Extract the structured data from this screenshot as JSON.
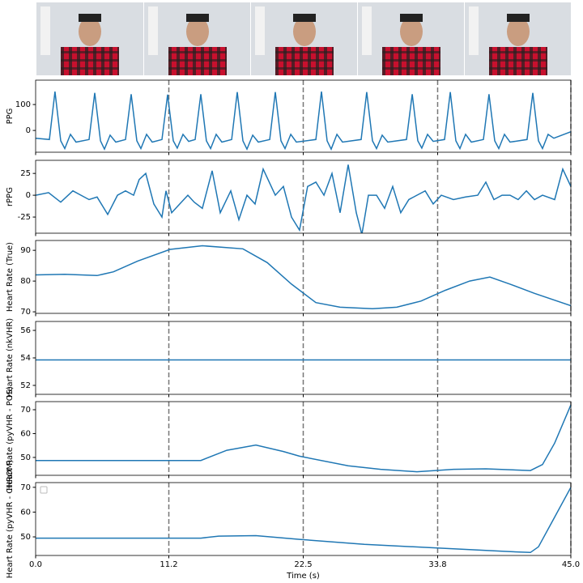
{
  "chart_data": [
    {
      "type": "line",
      "ylabel": "PPG",
      "color": "#1f77b4",
      "xlim": [
        0,
        45
      ],
      "ylim": [
        -84,
        194
      ],
      "yticks": [
        0,
        100
      ],
      "x": [
        0,
        1.16,
        1.63,
        2.11,
        2.45,
        2.93,
        3.4,
        4.49,
        4.97,
        5.45,
        5.79,
        6.26,
        6.74,
        7.56,
        8.03,
        8.51,
        8.85,
        9.33,
        9.8,
        10.62,
        11.1,
        11.57,
        11.91,
        12.39,
        12.87,
        13.41,
        13.89,
        14.36,
        14.71,
        15.18,
        15.66,
        16.48,
        16.95,
        17.43,
        17.77,
        18.25,
        18.72,
        19.68,
        20.15,
        20.63,
        20.97,
        21.45,
        21.92,
        23.56,
        24.03,
        24.51,
        24.85,
        25.33,
        25.8,
        27.37,
        27.84,
        28.32,
        28.66,
        29.14,
        29.61,
        31.18,
        31.66,
        32.13,
        32.47,
        32.95,
        33.43,
        34.38,
        34.86,
        35.33,
        35.67,
        36.15,
        36.63,
        37.65,
        38.12,
        38.6,
        38.94,
        39.42,
        39.89,
        41.32,
        41.8,
        42.28,
        42.62,
        43.09,
        43.57,
        45.0
      ],
      "values": [
        -30,
        -35,
        150,
        -40,
        -70,
        -15,
        -45,
        -35,
        145,
        -40,
        -72,
        -18,
        -45,
        -35,
        140,
        -40,
        -70,
        -15,
        -45,
        -35,
        138,
        -40,
        -68,
        -15,
        -42,
        -35,
        140,
        -40,
        -70,
        -15,
        -45,
        -35,
        148,
        -40,
        -72,
        -18,
        -45,
        -35,
        148,
        -40,
        -70,
        -15,
        -45,
        -35,
        150,
        -40,
        -72,
        -15,
        -45,
        -35,
        148,
        -40,
        -70,
        -18,
        -45,
        -35,
        140,
        -40,
        -68,
        -15,
        -42,
        -35,
        148,
        -40,
        -70,
        -15,
        -45,
        -35,
        140,
        -40,
        -70,
        -15,
        -45,
        -35,
        145,
        -40,
        -70,
        -15,
        -30,
        -5
      ]
    },
    {
      "type": "line",
      "ylabel": "rPPG",
      "color": "#1f77b4",
      "xlim": [
        0,
        45
      ],
      "ylim": [
        -43.5,
        40
      ],
      "yticks": [
        -25,
        0,
        25
      ],
      "x": [
        0,
        1.09,
        2.11,
        3.13,
        3.81,
        4.49,
        5.17,
        6.06,
        6.88,
        7.56,
        8.24,
        8.71,
        9.26,
        9.94,
        10.62,
        10.96,
        11.44,
        12.12,
        12.8,
        13.34,
        14.02,
        14.84,
        15.52,
        16.41,
        17.09,
        17.77,
        18.45,
        19.13,
        20.15,
        20.83,
        21.51,
        22.19,
        22.87,
        23.56,
        24.24,
        24.92,
        25.6,
        26.28,
        26.96,
        27.43,
        27.98,
        28.66,
        29.34,
        30.02,
        30.7,
        31.38,
        32.06,
        32.75,
        33.43,
        34.11,
        35.13,
        36.15,
        37.17,
        37.85,
        38.53,
        39.21,
        39.89,
        40.57,
        41.26,
        41.94,
        42.62,
        43.64,
        44.32,
        45.0
      ],
      "values": [
        0,
        3,
        -8,
        5,
        0,
        -5,
        -2,
        -22,
        0,
        5,
        0,
        18,
        25,
        -10,
        -25,
        5,
        -20,
        -10,
        0,
        -8,
        -15,
        28,
        -20,
        5,
        -28,
        0,
        -10,
        30,
        0,
        10,
        -25,
        -40,
        10,
        15,
        0,
        25,
        -20,
        35,
        -20,
        -45,
        0,
        0,
        -15,
        10,
        -20,
        -5,
        0,
        5,
        -10,
        0,
        -5,
        -2,
        0,
        15,
        -5,
        0,
        0,
        -5,
        5,
        -5,
        0,
        -5,
        30,
        10
      ]
    },
    {
      "type": "line",
      "ylabel": "Heart Rate (True)",
      "color": "#1f77b4",
      "xlim": [
        0,
        45
      ],
      "ylim": [
        69.5,
        93.2
      ],
      "yticks": [
        70,
        80,
        90
      ],
      "x": [
        0,
        2.45,
        5.17,
        6.54,
        8.58,
        11.3,
        14.02,
        17.43,
        19.47,
        21.51,
        23.56,
        25.6,
        28.32,
        30.36,
        32.4,
        34.45,
        36.49,
        38.19,
        39.89,
        41.94,
        45.0
      ],
      "values": [
        82,
        82.2,
        81.8,
        83,
        86.5,
        90.3,
        91.5,
        90.5,
        86,
        79,
        73,
        71.5,
        71,
        71.5,
        73.5,
        77,
        80,
        81.3,
        79,
        76,
        72
      ]
    },
    {
      "type": "line",
      "ylabel": "Heart Rate (nkVHR)",
      "color": "#1f77b4",
      "xlim": [
        0,
        45
      ],
      "ylim": [
        51.35,
        56.65
      ],
      "yticks": [
        52,
        54,
        56
      ],
      "x": [
        0,
        45.0
      ],
      "values": [
        53.85,
        53.85
      ]
    },
    {
      "type": "line",
      "ylabel": "Heart Rate (pyVHR - POS)",
      "color": "#1f77b4",
      "xlim": [
        0,
        45
      ],
      "ylim": [
        42.5,
        73.4
      ],
      "yticks": [
        50,
        60,
        70
      ],
      "x": [
        0,
        13.89,
        16.07,
        18.52,
        20.83,
        22.19,
        26.28,
        29.0,
        32.06,
        35.13,
        37.85,
        41.6,
        42.62,
        43.64,
        45.0
      ],
      "values": [
        48.7,
        48.7,
        53,
        55.2,
        52.5,
        50.5,
        46.5,
        45,
        44,
        45,
        45.2,
        44.5,
        47,
        56,
        72
      ]
    },
    {
      "type": "line",
      "ylabel": "Heart Rate (pyVHR - CHROM)",
      "color": "#1f77b4",
      "xlim": [
        0,
        45
      ],
      "ylim": [
        42.5,
        71.9
      ],
      "yticks": [
        50,
        60,
        70
      ],
      "xticks": [
        {
          "value": 0,
          "label": "0.0"
        },
        11.2,
        22.5,
        33.8,
        {
          "value": 45,
          "label": "45.0"
        }
      ],
      "xlabel": "Time (s)",
      "x": [
        0,
        13.89,
        15.39,
        18.52,
        22.19,
        27.64,
        33.77,
        39.21,
        41.6,
        42.28,
        43.64,
        45.0
      ],
      "values": [
        49.5,
        49.5,
        50.3,
        50.5,
        49,
        47,
        45.5,
        44.2,
        43.7,
        46,
        58,
        70
      ]
    }
  ]
}
